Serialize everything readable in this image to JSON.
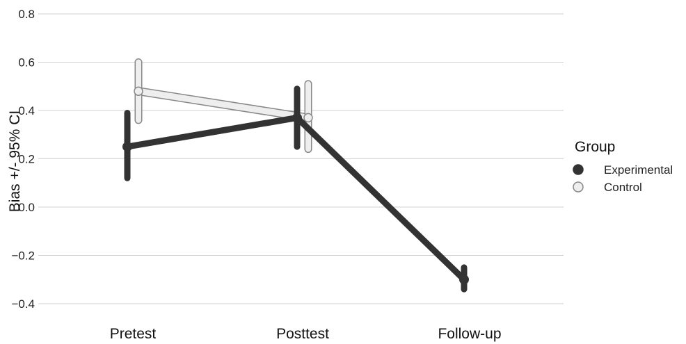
{
  "chart_data": {
    "type": "line",
    "ylabel": "Bias +/- 95% CI",
    "xlabel": "",
    "categories": [
      "Pretest",
      "Posttest",
      "Follow-up"
    ],
    "ylim": [
      -0.45,
      0.83
    ],
    "yticks": [
      0.8,
      0.6,
      0.4,
      0.2,
      0.0,
      -0.2,
      -0.4
    ],
    "ytick_labels": [
      "0.8",
      "0.6",
      "0.4",
      "0.2",
      "0.0",
      "−0.2",
      "−0.4"
    ],
    "grid": true,
    "legend": {
      "title": "Group",
      "placement": "right"
    },
    "series": [
      {
        "name": "Experimental",
        "color": "#333333",
        "values": [
          0.25,
          0.37,
          -0.3
        ],
        "ci_low": [
          0.12,
          0.25,
          -0.34
        ],
        "ci_high": [
          0.39,
          0.49,
          -0.25
        ]
      },
      {
        "name": "Control",
        "color": "#eeeeee",
        "values": [
          0.48,
          0.37,
          null
        ],
        "ci_low": [
          0.36,
          0.24,
          null
        ],
        "ci_high": [
          0.6,
          0.51,
          null
        ]
      }
    ]
  }
}
